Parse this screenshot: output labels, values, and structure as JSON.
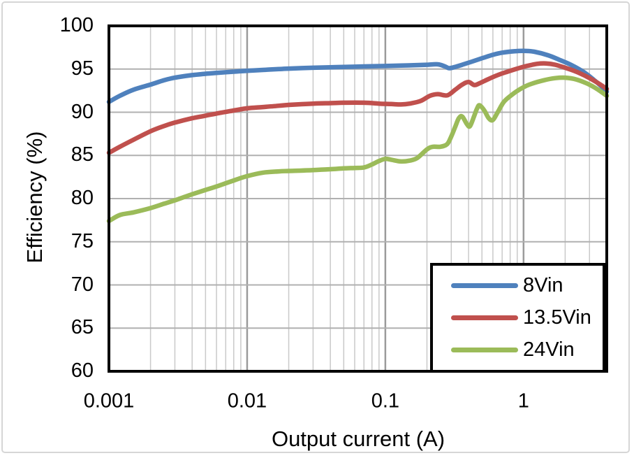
{
  "chart_data": {
    "type": "line",
    "title": "",
    "xlabel": "Output current (A)",
    "ylabel": "Efficiency (%)",
    "x_scale": "log",
    "xlim": [
      0.001,
      4
    ],
    "ylim": [
      60,
      100
    ],
    "grid": "both",
    "legend_position": "inside-bottom-right",
    "x_ticks": [
      {
        "value": 0.001,
        "label": "0.001"
      },
      {
        "value": 0.01,
        "label": "0.01"
      },
      {
        "value": 0.1,
        "label": "0.1"
      },
      {
        "value": 1,
        "label": "1"
      }
    ],
    "y_ticks": [
      {
        "value": 100,
        "label": "100"
      },
      {
        "value": 95,
        "label": "95"
      },
      {
        "value": 90,
        "label": "90"
      },
      {
        "value": 85,
        "label": "85"
      },
      {
        "value": 80,
        "label": "80"
      },
      {
        "value": 75,
        "label": "75"
      },
      {
        "value": 70,
        "label": "70"
      },
      {
        "value": 65,
        "label": "65"
      },
      {
        "value": 60,
        "label": "60"
      }
    ],
    "style": {
      "axis_color": "#000000",
      "grid_minor_color": "#c9c9c9",
      "grid_major_color": "#9b9b9b",
      "grid_h_color": "#b0b0b0",
      "frame_color": "#d6d6d6",
      "background": "#ffffff",
      "text_color": "#000000"
    },
    "series": [
      {
        "name": "8Vin",
        "color": "#4F81BD",
        "points": [
          [
            0.001,
            91.2
          ],
          [
            0.0012,
            91.9
          ],
          [
            0.0015,
            92.6
          ],
          [
            0.002,
            93.2
          ],
          [
            0.0025,
            93.7
          ],
          [
            0.003,
            94.0
          ],
          [
            0.004,
            94.3
          ],
          [
            0.005,
            94.45
          ],
          [
            0.006,
            94.55
          ],
          [
            0.008,
            94.7
          ],
          [
            0.01,
            94.8
          ],
          [
            0.013,
            94.9
          ],
          [
            0.017,
            95.0
          ],
          [
            0.02,
            95.05
          ],
          [
            0.03,
            95.15
          ],
          [
            0.04,
            95.2
          ],
          [
            0.05,
            95.25
          ],
          [
            0.07,
            95.3
          ],
          [
            0.1,
            95.35
          ],
          [
            0.13,
            95.4
          ],
          [
            0.16,
            95.45
          ],
          [
            0.2,
            95.5
          ],
          [
            0.24,
            95.55
          ],
          [
            0.27,
            95.3
          ],
          [
            0.29,
            95.1
          ],
          [
            0.32,
            95.25
          ],
          [
            0.36,
            95.5
          ],
          [
            0.42,
            95.85
          ],
          [
            0.5,
            96.25
          ],
          [
            0.6,
            96.65
          ],
          [
            0.7,
            96.9
          ],
          [
            0.85,
            97.05
          ],
          [
            1.0,
            97.1
          ],
          [
            1.2,
            97.0
          ],
          [
            1.5,
            96.6
          ],
          [
            1.8,
            96.1
          ],
          [
            2.2,
            95.5
          ],
          [
            2.7,
            94.7
          ],
          [
            3.2,
            93.8
          ],
          [
            3.6,
            93.1
          ],
          [
            4.0,
            92.4
          ]
        ]
      },
      {
        "name": "13.5Vin",
        "color": "#C0504D",
        "points": [
          [
            0.001,
            85.3
          ],
          [
            0.0012,
            86.0
          ],
          [
            0.0015,
            86.8
          ],
          [
            0.002,
            87.8
          ],
          [
            0.0025,
            88.4
          ],
          [
            0.003,
            88.8
          ],
          [
            0.004,
            89.3
          ],
          [
            0.005,
            89.6
          ],
          [
            0.006,
            89.85
          ],
          [
            0.008,
            90.2
          ],
          [
            0.01,
            90.45
          ],
          [
            0.013,
            90.6
          ],
          [
            0.017,
            90.75
          ],
          [
            0.02,
            90.85
          ],
          [
            0.03,
            91.0
          ],
          [
            0.04,
            91.05
          ],
          [
            0.05,
            91.1
          ],
          [
            0.07,
            91.1
          ],
          [
            0.09,
            91.0
          ],
          [
            0.11,
            90.95
          ],
          [
            0.13,
            90.9
          ],
          [
            0.15,
            91.0
          ],
          [
            0.18,
            91.3
          ],
          [
            0.21,
            91.9
          ],
          [
            0.24,
            92.1
          ],
          [
            0.28,
            91.95
          ],
          [
            0.32,
            92.6
          ],
          [
            0.36,
            93.2
          ],
          [
            0.4,
            93.5
          ],
          [
            0.44,
            93.15
          ],
          [
            0.48,
            93.35
          ],
          [
            0.55,
            93.8
          ],
          [
            0.65,
            94.3
          ],
          [
            0.75,
            94.65
          ],
          [
            0.9,
            95.05
          ],
          [
            1.05,
            95.35
          ],
          [
            1.25,
            95.6
          ],
          [
            1.45,
            95.65
          ],
          [
            1.7,
            95.5
          ],
          [
            2.0,
            95.15
          ],
          [
            2.4,
            94.7
          ],
          [
            2.8,
            94.2
          ],
          [
            3.2,
            93.7
          ],
          [
            3.6,
            93.2
          ],
          [
            4.0,
            92.7
          ]
        ]
      },
      {
        "name": "24Vin",
        "color": "#9BBB59",
        "points": [
          [
            0.001,
            77.4
          ],
          [
            0.0012,
            78.1
          ],
          [
            0.0015,
            78.4
          ],
          [
            0.002,
            78.9
          ],
          [
            0.0025,
            79.4
          ],
          [
            0.003,
            79.8
          ],
          [
            0.004,
            80.5
          ],
          [
            0.005,
            81.0
          ],
          [
            0.006,
            81.4
          ],
          [
            0.008,
            82.1
          ],
          [
            0.01,
            82.6
          ],
          [
            0.013,
            83.0
          ],
          [
            0.017,
            83.15
          ],
          [
            0.02,
            83.2
          ],
          [
            0.03,
            83.3
          ],
          [
            0.04,
            83.4
          ],
          [
            0.05,
            83.5
          ],
          [
            0.06,
            83.55
          ],
          [
            0.07,
            83.6
          ],
          [
            0.08,
            83.95
          ],
          [
            0.09,
            84.35
          ],
          [
            0.1,
            84.6
          ],
          [
            0.11,
            84.5
          ],
          [
            0.13,
            84.3
          ],
          [
            0.15,
            84.4
          ],
          [
            0.17,
            84.7
          ],
          [
            0.2,
            85.7
          ],
          [
            0.22,
            86.0
          ],
          [
            0.25,
            86.0
          ],
          [
            0.28,
            86.3
          ],
          [
            0.3,
            87.2
          ],
          [
            0.32,
            88.3
          ],
          [
            0.34,
            89.3
          ],
          [
            0.36,
            89.5
          ],
          [
            0.39,
            88.6
          ],
          [
            0.41,
            88.4
          ],
          [
            0.44,
            89.6
          ],
          [
            0.46,
            90.4
          ],
          [
            0.48,
            90.8
          ],
          [
            0.52,
            90.2
          ],
          [
            0.56,
            89.3
          ],
          [
            0.6,
            89.1
          ],
          [
            0.65,
            90.0
          ],
          [
            0.72,
            91.2
          ],
          [
            0.82,
            92.0
          ],
          [
            0.95,
            92.7
          ],
          [
            1.1,
            93.2
          ],
          [
            1.4,
            93.7
          ],
          [
            1.7,
            93.95
          ],
          [
            2.0,
            94.0
          ],
          [
            2.4,
            93.8
          ],
          [
            2.9,
            93.3
          ],
          [
            3.4,
            92.7
          ],
          [
            4.0,
            91.9
          ]
        ]
      }
    ]
  }
}
